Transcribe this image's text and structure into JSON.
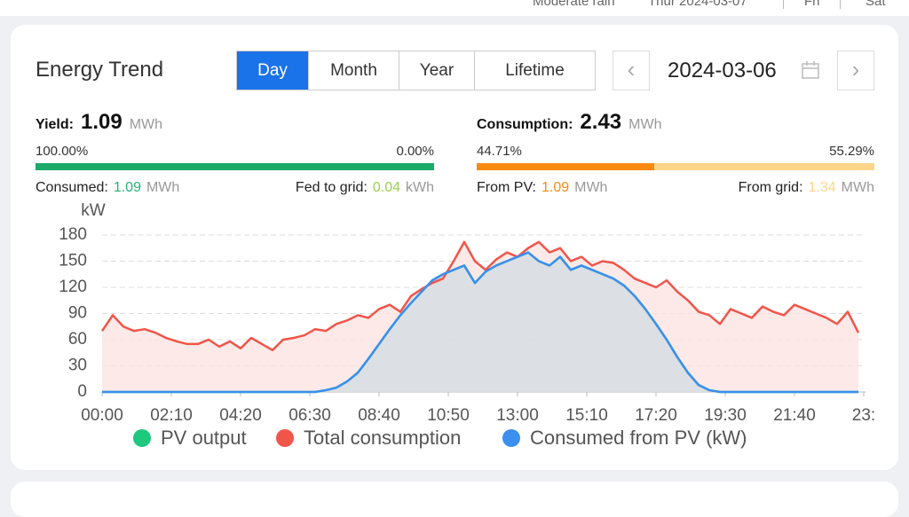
{
  "weather": {
    "text": "Moderate rain",
    "date": "Thur  2024-03-07",
    "days": [
      "Fri",
      "Sat"
    ]
  },
  "header": {
    "title": "Energy Trend",
    "tabs": [
      "Day",
      "Month",
      "Year",
      "Lifetime"
    ],
    "active_tab": 0,
    "date": "2024-03-06"
  },
  "yield": {
    "label": "Yield:",
    "value": 1.09,
    "unit": "MWh",
    "color": "#1aaa6a",
    "shares": [
      {
        "value": 100,
        "label": "100.00%"
      },
      {
        "value": 0,
        "label": "0.00%"
      }
    ],
    "left": {
      "label": "Consumed:",
      "value": 1.09,
      "unit": "MWh",
      "color": "#21b573"
    },
    "right": {
      "label": "Fed to grid:",
      "value": 0.04,
      "unit": "kWh",
      "color": "#9ad34c"
    }
  },
  "consumption": {
    "label": "Consumption:",
    "value": 2.43,
    "unit": "MWh",
    "shares": [
      {
        "value": 44.71,
        "label": "44.71%"
      },
      {
        "value": 55.29,
        "label": "55.29%"
      }
    ],
    "left": {
      "label": "From PV:",
      "value": 1.09,
      "unit": "MWh",
      "color": "#f98a0f"
    },
    "right": {
      "label": "From grid:",
      "value": 1.34,
      "unit": "MWh",
      "color": "#fdd58a"
    }
  },
  "chart_data": {
    "type": "line",
    "y_label": "kW",
    "xlim": [
      0,
      1430
    ],
    "xticks": [
      {
        "value": 0,
        "label": "00:00"
      },
      {
        "value": 130,
        "label": "02:10"
      },
      {
        "value": 260,
        "label": "04:20"
      },
      {
        "value": 390,
        "label": "06:30"
      },
      {
        "value": 520,
        "label": "08:40"
      },
      {
        "value": 650,
        "label": "10:50"
      },
      {
        "value": 780,
        "label": "13:00"
      },
      {
        "value": 910,
        "label": "15:10"
      },
      {
        "value": 1040,
        "label": "17:20"
      },
      {
        "value": 1170,
        "label": "19:30"
      },
      {
        "value": 1300,
        "label": "21:40"
      },
      {
        "value": 1430,
        "label": "23:"
      }
    ],
    "ylim": [
      0,
      180
    ],
    "yticks": [
      0,
      30,
      60,
      90,
      120,
      150,
      180
    ],
    "grid": true,
    "x": [
      0,
      20,
      40,
      60,
      80,
      100,
      120,
      140,
      160,
      180,
      200,
      220,
      240,
      260,
      280,
      300,
      320,
      340,
      360,
      380,
      400,
      420,
      440,
      460,
      480,
      500,
      520,
      540,
      560,
      580,
      600,
      620,
      640,
      660,
      680,
      700,
      720,
      740,
      760,
      780,
      800,
      820,
      840,
      860,
      880,
      900,
      920,
      940,
      960,
      980,
      1000,
      1020,
      1040,
      1060,
      1080,
      1100,
      1120,
      1140,
      1160,
      1180,
      1200,
      1220,
      1240,
      1260,
      1280,
      1300,
      1320,
      1340,
      1360,
      1380,
      1400,
      1420
    ],
    "series": [
      {
        "name": "PV output",
        "color": "#1ec87e",
        "values": [
          0,
          0,
          0,
          0,
          0,
          0,
          0,
          0,
          0,
          0,
          0,
          0,
          0,
          0,
          0,
          0,
          0,
          0,
          0,
          0,
          0,
          2,
          5,
          12,
          22,
          38,
          55,
          72,
          88,
          102,
          115,
          128,
          135,
          140,
          145,
          125,
          138,
          145,
          150,
          155,
          160,
          150,
          145,
          155,
          140,
          145,
          140,
          135,
          130,
          122,
          110,
          95,
          78,
          60,
          40,
          22,
          8,
          2,
          0,
          0,
          0,
          0,
          0,
          0,
          0,
          0,
          0,
          0,
          0,
          0,
          0,
          0
        ]
      },
      {
        "name": "Total consumption",
        "color": "#f0554a",
        "fill": "#fde4e1",
        "values": [
          70,
          88,
          75,
          70,
          72,
          68,
          62,
          58,
          55,
          55,
          60,
          52,
          58,
          50,
          62,
          55,
          48,
          60,
          62,
          65,
          72,
          70,
          78,
          82,
          88,
          85,
          95,
          100,
          92,
          110,
          118,
          125,
          130,
          150,
          172,
          150,
          140,
          152,
          160,
          155,
          165,
          172,
          160,
          165,
          150,
          155,
          145,
          150,
          148,
          140,
          130,
          125,
          120,
          128,
          115,
          105,
          92,
          88,
          78,
          95,
          90,
          85,
          98,
          92,
          88,
          100,
          95,
          90,
          85,
          78,
          92,
          68
        ]
      },
      {
        "name": "Consumed from PV (kW)",
        "color": "#3b8fef",
        "fill": "#d3dce4",
        "values": [
          0,
          0,
          0,
          0,
          0,
          0,
          0,
          0,
          0,
          0,
          0,
          0,
          0,
          0,
          0,
          0,
          0,
          0,
          0,
          0,
          0,
          2,
          5,
          12,
          22,
          38,
          55,
          72,
          88,
          102,
          115,
          128,
          135,
          140,
          145,
          125,
          138,
          145,
          150,
          155,
          160,
          150,
          145,
          155,
          140,
          145,
          140,
          135,
          130,
          122,
          110,
          95,
          78,
          60,
          40,
          22,
          8,
          2,
          0,
          0,
          0,
          0,
          0,
          0,
          0,
          0,
          0,
          0,
          0,
          0,
          0,
          0
        ]
      }
    ]
  }
}
